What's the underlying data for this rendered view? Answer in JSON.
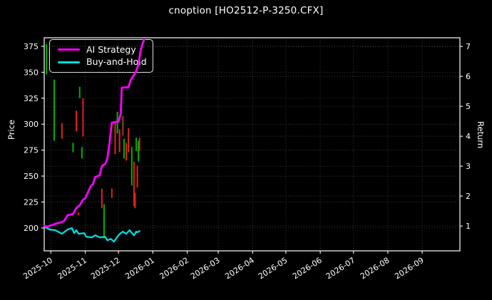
{
  "window": {
    "background": "#000000"
  },
  "colors": {
    "background": "#000000",
    "text": "#ffffff",
    "spine": "#ffffff",
    "grid": "#9a9a9a",
    "candle_up": "#00b100",
    "candle_down": "#e12120",
    "candle_down_dark": "#9c3a2a",
    "ai_strategy": "#ff00ff",
    "buy_and_hold": "#00dcdc"
  },
  "legend": {
    "items": [
      {
        "label": "AI Strategy",
        "color": "#ff00ff"
      },
      {
        "label": "Buy-and-Hold",
        "color": "#00dcdc"
      }
    ]
  },
  "chart_data": {
    "type": "candlestick+line",
    "title": "cnoption [HO2512-P-3250.CFX]",
    "grid": "dotted, both axes",
    "legend_position": "upper left",
    "x_axis": {
      "range": [
        "2025-09-25",
        "2026-10-05"
      ],
      "ticks": [
        {
          "date": "2025-10-01",
          "label": "2025-10"
        },
        {
          "date": "2025-11-01",
          "label": "2025-11"
        },
        {
          "date": "2025-12-01",
          "label": "2025-12"
        },
        {
          "date": "2026-01-01",
          "label": "2026-01"
        },
        {
          "date": "2026-02-01",
          "label": "2026-02"
        },
        {
          "date": "2026-03-01",
          "label": "2026-03"
        },
        {
          "date": "2026-04-01",
          "label": "2026-04"
        },
        {
          "date": "2026-05-01",
          "label": "2026-05"
        },
        {
          "date": "2026-06-01",
          "label": "2026-06"
        },
        {
          "date": "2026-07-01",
          "label": "2026-07"
        },
        {
          "date": "2026-08-01",
          "label": "2026-08"
        },
        {
          "date": "2026-09-01",
          "label": "2026-09"
        }
      ]
    },
    "price_axis": {
      "label": "Price",
      "range": [
        178,
        383.2
      ],
      "ticks": [
        200,
        225,
        250,
        275,
        300,
        325,
        350,
        375
      ]
    },
    "return_axis": {
      "label": "Return",
      "range": [
        0.17,
        7.29
      ],
      "ticks": [
        1,
        2,
        3,
        4,
        5,
        6,
        7
      ]
    },
    "candles": [
      [
        "2025-09-27",
        377,
        348,
        "up"
      ],
      [
        "2025-10-04",
        343,
        284,
        "up"
      ],
      [
        "2025-10-11",
        301,
        286,
        "down"
      ],
      [
        "2025-10-21",
        282,
        273,
        "up"
      ],
      [
        "2025-10-24",
        313,
        293,
        "down"
      ],
      [
        "2025-10-26",
        215,
        212,
        "down"
      ],
      [
        "2025-10-27",
        336,
        325,
        "up"
      ],
      [
        "2025-10-29",
        278,
        267,
        "up"
      ],
      [
        "2025-10-30",
        325,
        288,
        "down"
      ],
      [
        "2025-11-16",
        238,
        219,
        "down"
      ],
      [
        "2025-11-18",
        223,
        190,
        "up"
      ],
      [
        "2025-11-25",
        238,
        229,
        "down"
      ],
      [
        "2025-11-28",
        301,
        271,
        "down"
      ],
      [
        "2025-11-30",
        312,
        291,
        "up"
      ],
      [
        "2025-12-02",
        295,
        273,
        "down"
      ],
      [
        "2025-12-05",
        308,
        289,
        "down_dark"
      ],
      [
        "2025-12-06",
        286,
        267,
        "up"
      ],
      [
        "2025-12-08",
        282,
        265,
        "down"
      ],
      [
        "2025-12-10",
        296,
        273,
        "down"
      ],
      [
        "2025-12-13",
        278,
        241,
        "up"
      ],
      [
        "2025-12-15",
        264,
        221,
        "down"
      ],
      [
        "2025-12-16",
        234,
        219,
        "down"
      ],
      [
        "2025-12-17",
        287,
        274,
        "up"
      ],
      [
        "2025-12-18",
        260,
        239,
        "down"
      ],
      [
        "2025-12-19",
        284,
        264,
        "up"
      ],
      [
        "2025-12-20",
        287,
        274,
        "down"
      ]
    ],
    "series": [
      {
        "name": "AI Strategy",
        "axis": "return",
        "color": "#ff00ff",
        "points": [
          [
            "2025-09-25",
            1.0
          ],
          [
            "2025-09-28",
            0.98
          ],
          [
            "2025-10-01",
            1.02
          ],
          [
            "2025-10-05",
            1.07
          ],
          [
            "2025-10-10",
            1.12
          ],
          [
            "2025-10-13",
            1.17
          ],
          [
            "2025-10-16",
            1.36
          ],
          [
            "2025-10-21",
            1.4
          ],
          [
            "2025-10-24",
            1.6
          ],
          [
            "2025-10-27",
            1.69
          ],
          [
            "2025-10-30",
            1.88
          ],
          [
            "2025-11-01",
            1.93
          ],
          [
            "2025-11-04",
            2.17
          ],
          [
            "2025-11-06",
            2.33
          ],
          [
            "2025-11-08",
            2.4
          ],
          [
            "2025-11-10",
            2.64
          ],
          [
            "2025-11-14",
            2.69
          ],
          [
            "2025-11-16",
            3.0
          ],
          [
            "2025-11-19",
            3.07
          ],
          [
            "2025-11-21",
            3.26
          ],
          [
            "2025-11-23",
            3.79
          ],
          [
            "2025-11-24",
            4.14
          ],
          [
            "2025-11-25",
            4.45
          ],
          [
            "2025-12-01",
            4.5
          ],
          [
            "2025-12-03",
            4.74
          ],
          [
            "2025-12-04",
            5.62
          ],
          [
            "2025-12-10",
            5.64
          ],
          [
            "2025-12-12",
            5.88
          ],
          [
            "2025-12-14",
            6.0
          ],
          [
            "2025-12-17",
            6.17
          ],
          [
            "2025-12-19",
            6.4
          ],
          [
            "2025-12-21",
            6.88
          ],
          [
            "2025-12-23",
            7.12
          ],
          [
            "2025-12-24",
            7.22
          ]
        ]
      },
      {
        "name": "Buy-and-Hold",
        "axis": "return",
        "color": "#00dcdc",
        "points": [
          [
            "2025-09-25",
            0.98
          ],
          [
            "2025-09-30",
            0.88
          ],
          [
            "2025-10-05",
            0.86
          ],
          [
            "2025-10-11",
            0.74
          ],
          [
            "2025-10-16",
            0.88
          ],
          [
            "2025-10-20",
            0.93
          ],
          [
            "2025-10-22",
            0.76
          ],
          [
            "2025-10-24",
            0.86
          ],
          [
            "2025-10-26",
            0.74
          ],
          [
            "2025-10-31",
            0.76
          ],
          [
            "2025-11-02",
            0.64
          ],
          [
            "2025-11-07",
            0.62
          ],
          [
            "2025-11-10",
            0.69
          ],
          [
            "2025-11-14",
            0.62
          ],
          [
            "2025-11-19",
            0.64
          ],
          [
            "2025-11-21",
            0.52
          ],
          [
            "2025-11-24",
            0.57
          ],
          [
            "2025-11-27",
            0.48
          ],
          [
            "2025-12-01",
            0.69
          ],
          [
            "2025-12-03",
            0.76
          ],
          [
            "2025-12-05",
            0.81
          ],
          [
            "2025-12-08",
            0.74
          ],
          [
            "2025-12-11",
            0.86
          ],
          [
            "2025-12-15",
            0.69
          ],
          [
            "2025-12-17",
            0.81
          ],
          [
            "2025-12-18",
            0.79
          ],
          [
            "2025-12-20",
            0.83
          ]
        ]
      }
    ]
  }
}
